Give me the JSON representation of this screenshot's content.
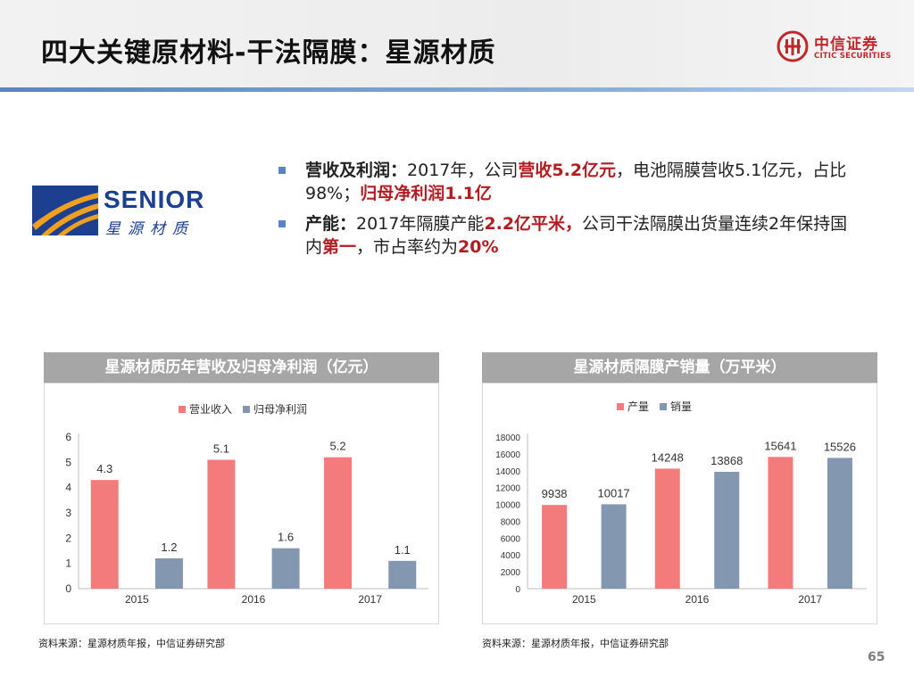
{
  "header": {
    "title": "四大关键原材料-干法隔膜：星源材质",
    "brand_cn": "中信证券",
    "brand_en": "CITIC SECURITIES"
  },
  "company_logo": {
    "word": "SENIOR",
    "cn": "星源材质"
  },
  "bullets": [
    {
      "parts": [
        {
          "text": "营收及利润：",
          "style": "b"
        },
        {
          "text": "2017年，公司",
          "style": ""
        },
        {
          "text": "营收5.2亿元",
          "style": "red"
        },
        {
          "text": "，电池隔膜营收5.1亿元，占比98%；",
          "style": ""
        },
        {
          "text": "归母净利润1.1亿",
          "style": "red"
        }
      ]
    },
    {
      "parts": [
        {
          "text": "产能：",
          "style": "b"
        },
        {
          "text": "2017年隔膜产能",
          "style": ""
        },
        {
          "text": "2.2亿平米，",
          "style": "red"
        },
        {
          "text": "公司干法隔膜出货量连续2年保持国内",
          "style": ""
        },
        {
          "text": "第一",
          "style": "red"
        },
        {
          "text": "，市占率约为",
          "style": ""
        },
        {
          "text": "20%",
          "style": "red"
        }
      ]
    }
  ],
  "chart_data": [
    {
      "type": "bar",
      "title": "星源材质历年营收及归母净利润（亿元）",
      "categories": [
        "2015",
        "2016",
        "2017"
      ],
      "series": [
        {
          "name": "营业收入",
          "values": [
            4.3,
            5.1,
            5.2
          ],
          "color": "#f47b7b"
        },
        {
          "name": "归母净利润",
          "values": [
            1.2,
            1.6,
            1.1
          ],
          "color": "#8497b0"
        }
      ],
      "ylim": [
        0,
        6
      ],
      "yticks": [
        "0",
        "1",
        "2",
        "3",
        "4",
        "5",
        "6"
      ],
      "legend": "top-center",
      "grid": false
    },
    {
      "type": "bar",
      "title": "星源材质隔膜产销量（万平米）",
      "categories": [
        "2015",
        "2016",
        "2017"
      ],
      "series": [
        {
          "name": "产量",
          "values": [
            9938,
            14248,
            15641
          ],
          "color": "#f47b7b"
        },
        {
          "name": "销量",
          "values": [
            10017,
            13868,
            15526
          ],
          "color": "#8497b0"
        }
      ],
      "ylim": [
        0,
        18000
      ],
      "yticks": [
        "0",
        "2000",
        "4000",
        "6000",
        "8000",
        "10000",
        "12000",
        "14000",
        "16000",
        "18000"
      ],
      "legend": "top-center",
      "grid": false
    }
  ],
  "sources": [
    "资料来源：星源材质年报，中信证券研究部",
    "资料来源：星源材质年报，中信证券研究部"
  ],
  "page_number": "65"
}
